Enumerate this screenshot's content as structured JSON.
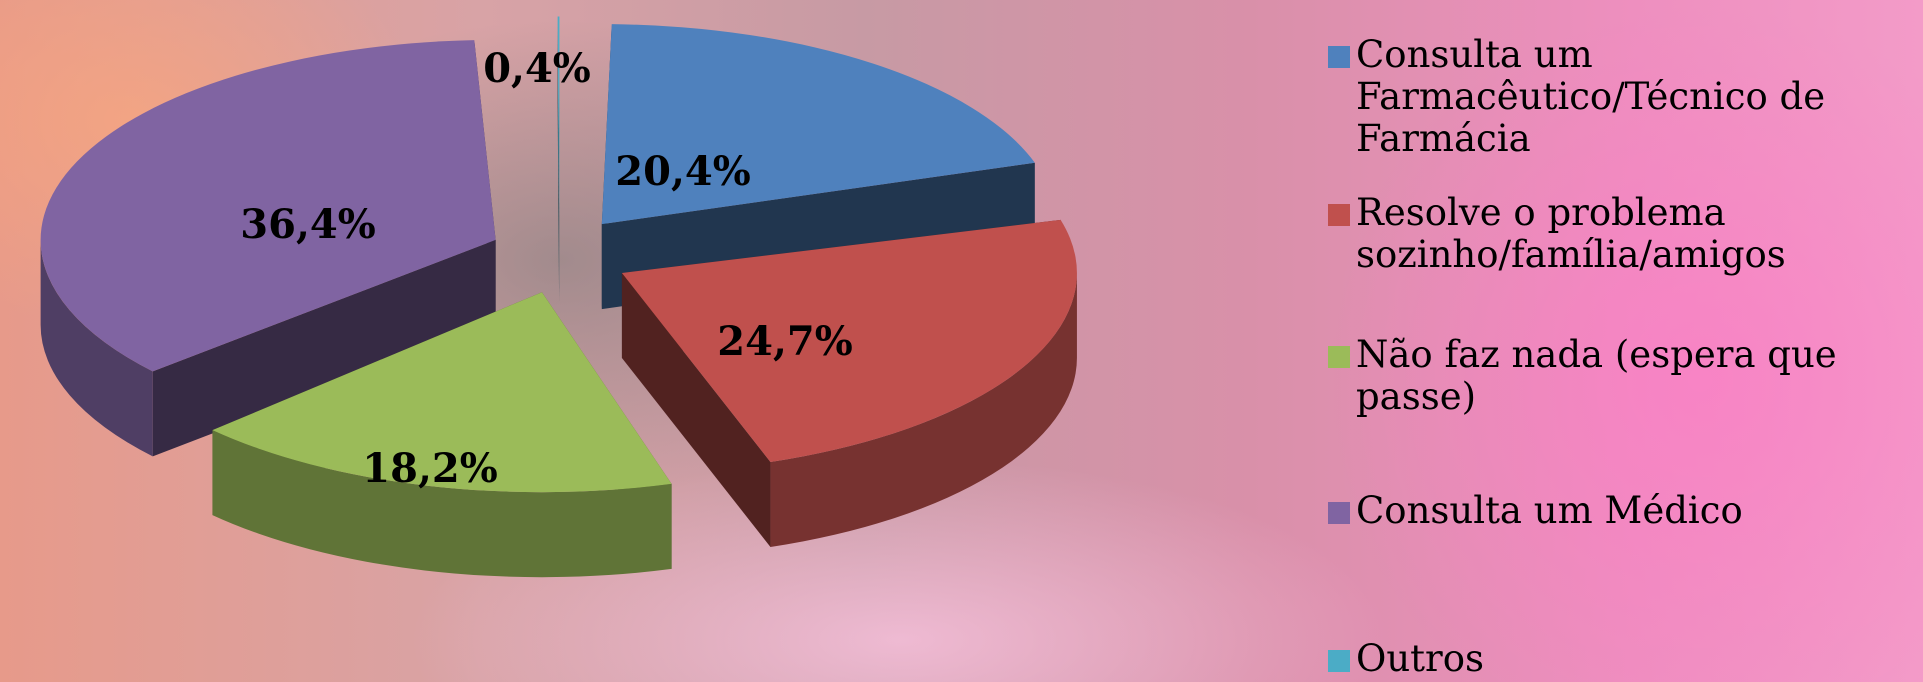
{
  "chart_data": {
    "type": "pie",
    "title": "",
    "legend_position": "right",
    "slices": [
      {
        "label": "Consulta um Farmacêutico/Técnico de Farmácia",
        "value": 20.4,
        "display": "20,4%",
        "color": "#4f81bd"
      },
      {
        "label": "Resolve o problema sozinho/família/amigos",
        "value": 24.7,
        "display": "24,7%",
        "color": "#c0504d"
      },
      {
        "label": "Não faz nada (espera que passe)",
        "value": 18.2,
        "display": "18,2%",
        "color": "#9bbb59"
      },
      {
        "label": "Consulta um Médico",
        "value": 36.4,
        "display": "36,4%",
        "color": "#8064a2"
      },
      {
        "label": "Outros",
        "value": 0.4,
        "display": "0,4%",
        "color": "#4bacc6"
      }
    ]
  }
}
